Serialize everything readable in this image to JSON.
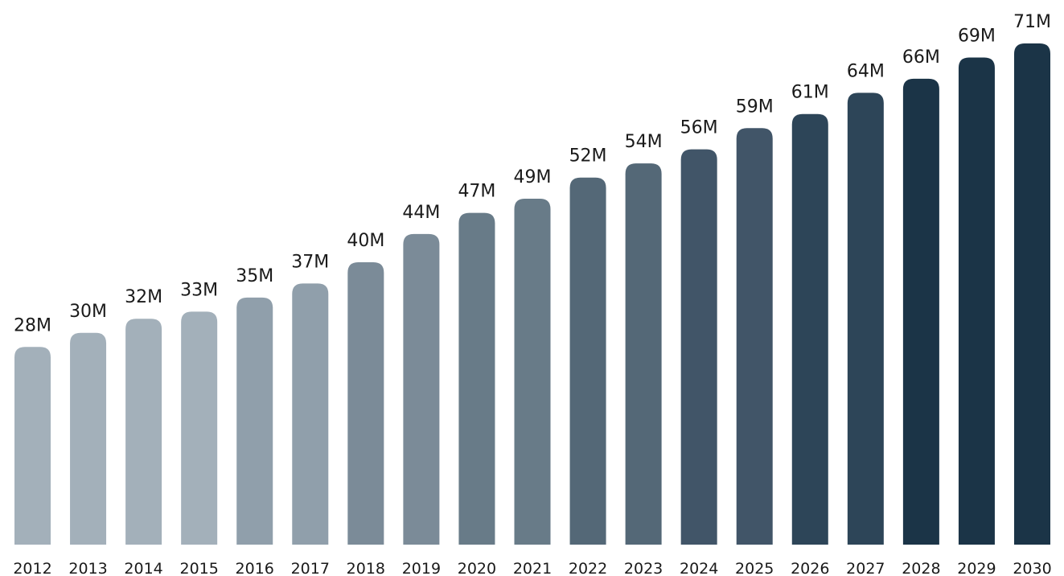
{
  "chart_data": {
    "type": "bar",
    "categories": [
      "2012",
      "2013",
      "2014",
      "2015",
      "2016",
      "2017",
      "2018",
      "2019",
      "2020",
      "2021",
      "2022",
      "2023",
      "2024",
      "2025",
      "2026",
      "2027",
      "2028",
      "2029",
      "2030"
    ],
    "values": [
      28,
      30,
      32,
      33,
      35,
      37,
      40,
      44,
      47,
      49,
      52,
      54,
      56,
      59,
      61,
      64,
      66,
      69,
      71
    ],
    "value_labels": [
      "28M",
      "30M",
      "32M",
      "33M",
      "35M",
      "37M",
      "40M",
      "44M",
      "47M",
      "49M",
      "52M",
      "54M",
      "56M",
      "59M",
      "61M",
      "64M",
      "66M",
      "69M",
      "71M"
    ],
    "colors": [
      "#a3b0ba",
      "#a3b0ba",
      "#a3b0ba",
      "#a3b0ba",
      "#909fab",
      "#909fab",
      "#7b8b98",
      "#7b8b98",
      "#687b88",
      "#687b88",
      "#546877",
      "#546877",
      "#415568",
      "#415568",
      "#2d4558",
      "#2d4558",
      "#1b3447",
      "#1b3447",
      "#1b3447"
    ]
  }
}
